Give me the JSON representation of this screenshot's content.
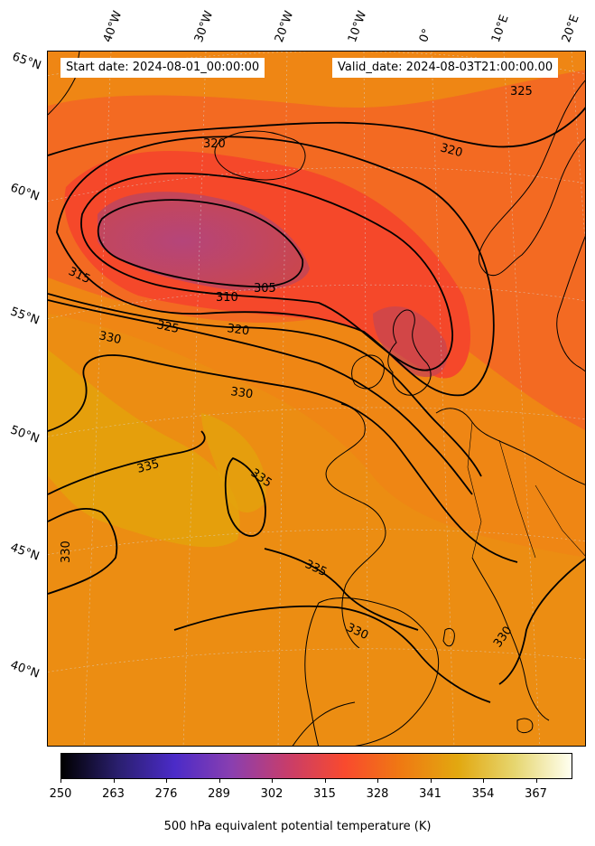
{
  "header": {
    "start_date": "Start date: 2024-08-01_00:00:00",
    "valid_date": "Valid_date: 2024-08-03T21:00:00.00"
  },
  "axes": {
    "latitude_labels": [
      "65°N",
      "60°N",
      "55°N",
      "50°N",
      "45°N",
      "40°N"
    ],
    "longitude_labels": [
      "40°W",
      "30°W",
      "20°W",
      "10°W",
      "0°",
      "10°E",
      "20°E"
    ]
  },
  "contour_labels": [
    "305",
    "310",
    "315",
    "320",
    "320",
    "320",
    "325",
    "325",
    "330",
    "330",
    "330",
    "330",
    "330",
    "335",
    "335",
    "335"
  ],
  "colorbar": {
    "ticks": [
      "250",
      "263",
      "276",
      "289",
      "302",
      "315",
      "328",
      "341",
      "354",
      "367"
    ],
    "label": "500 hPa equivalent potential temperature (K)",
    "colors": [
      "#000000",
      "#2a1f6e",
      "#4b2bc8",
      "#8a3fb0",
      "#c83d6a",
      "#f94a2e",
      "#ef7a12",
      "#e2a810",
      "#e6d670",
      "#fffff0"
    ]
  },
  "field_colors": {
    "background": "#ef8614",
    "warm": "#e79a0c",
    "red": "#f5482a",
    "purple": "#b8446e",
    "contour": "#000000",
    "coast": "#000000"
  }
}
